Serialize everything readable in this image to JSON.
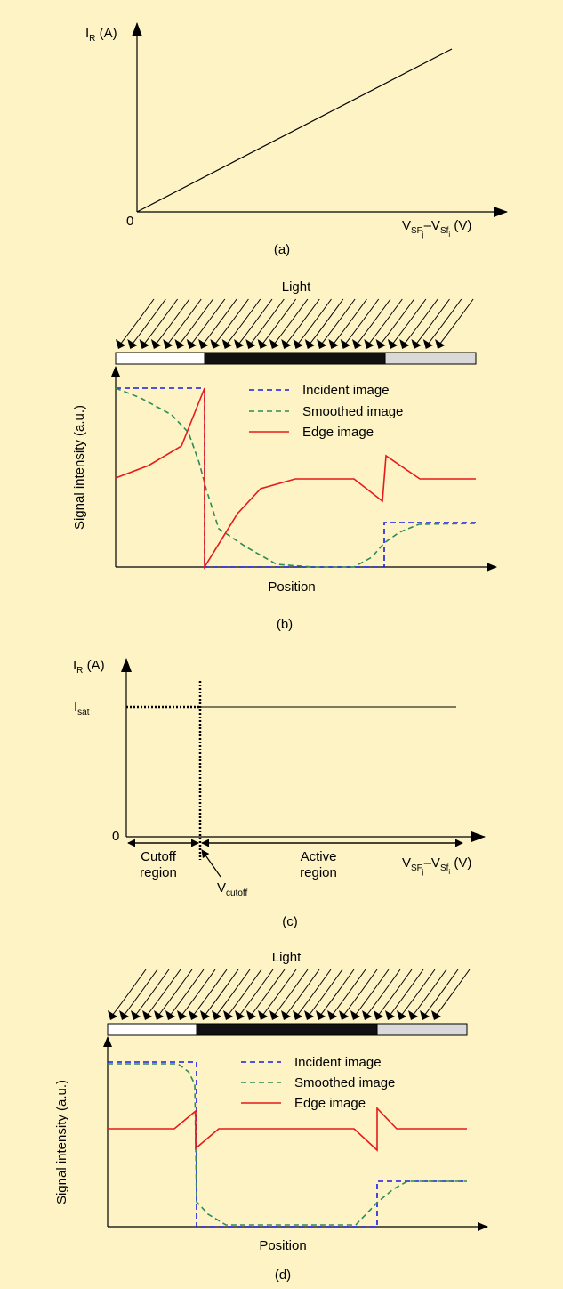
{
  "background": "#FDF3C5",
  "colors": {
    "incident": "#1A1AE6",
    "smoothed": "#2E8B57",
    "edge": "#E61A1A",
    "bar_dark": "#111111",
    "bar_light": "#D9D9D9",
    "bar_white": "#FFFFFF"
  },
  "panel_a": {
    "y_axis_label": "I",
    "y_axis_sub": "R",
    "y_axis_unit": " (A)",
    "origin": "0",
    "x_axis_label": {
      "v1": "V",
      "v1_sub": "SF",
      "v1_subsub": "j",
      "dash": "–",
      "v2": "V",
      "v2_sub": "Sf",
      "v2_subsub": "i",
      "unit": " (V)"
    },
    "caption": "(a)"
  },
  "panel_b": {
    "light_label": "Light",
    "light_icon": "arrow-icon",
    "y_axis_label": "Signal intensity (a.u.)",
    "x_axis_label": "Position",
    "legend": [
      "Incident image",
      "Smoothed image",
      "Edge image"
    ],
    "caption": "(b)"
  },
  "panel_c": {
    "y_axis_label": "I",
    "y_axis_sub": "R",
    "y_axis_unit": " (A)",
    "isat_label": "I",
    "isat_sub": "sat",
    "origin": "0",
    "cutoff_region": [
      "Cutoff",
      "region"
    ],
    "active_region": [
      "Active",
      "region"
    ],
    "vcutoff_label": "V",
    "vcutoff_sub": "cutoff",
    "x_axis_label": {
      "v1": "V",
      "v1_sub": "SF",
      "v1_subsub": "j",
      "dash": "–",
      "v2": "V",
      "v2_sub": "Sf",
      "v2_subsub": "i",
      "unit": " (V)"
    },
    "caption": "(c)"
  },
  "panel_d": {
    "light_label": "Light",
    "light_icon": "arrow-icon",
    "y_axis_label": "Signal intensity (a.u.)",
    "x_axis_label": "Position",
    "legend": [
      "Incident image",
      "Smoothed image",
      "Edge image"
    ],
    "caption": "(d)"
  }
}
